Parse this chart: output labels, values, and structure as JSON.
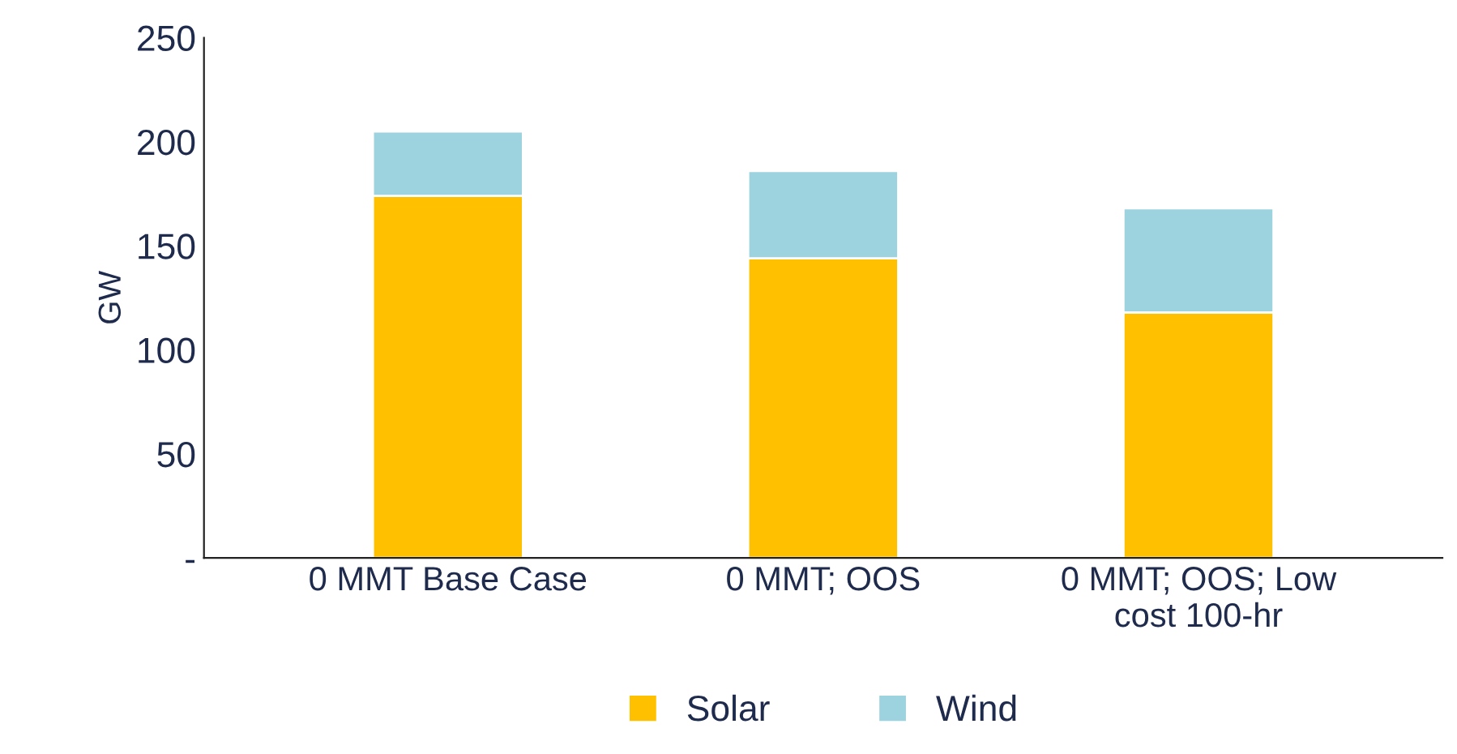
{
  "chart_data": {
    "type": "bar",
    "stacked": true,
    "ylabel": "GW",
    "categories": [
      "0 MMT Base Case",
      "0 MMT; OOS",
      "0 MMT; OOS; Low\ncost 100-hr"
    ],
    "series": [
      {
        "name": "Solar",
        "color": "#ffc000",
        "values": [
          174,
          144,
          118
        ]
      },
      {
        "name": "Wind",
        "color": "#9dd3de",
        "values": [
          31,
          42,
          50
        ]
      }
    ],
    "ylim": [
      0,
      250
    ],
    "yticks": [
      {
        "value": 0,
        "label": "-"
      },
      50,
      100,
      150,
      200,
      250
    ],
    "grid": false,
    "legend": "bottom"
  }
}
